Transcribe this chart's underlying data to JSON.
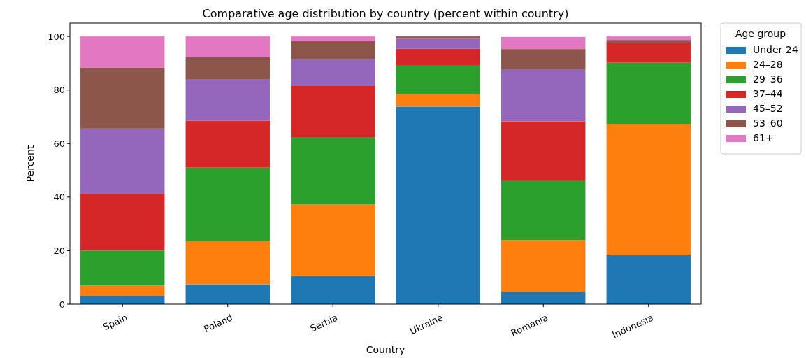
{
  "chart_data": {
    "type": "bar",
    "stacked": true,
    "title": "Comparative age distribution by country (percent within country)",
    "xlabel": "Country",
    "ylabel": "Percent",
    "legend_title": "Age group",
    "legend": "top right",
    "categories": [
      "Spain",
      "Poland",
      "Serbia",
      "Ukraine",
      "Romania",
      "Indonesia"
    ],
    "ylim": [
      0,
      105
    ],
    "yticks": [
      0,
      20,
      40,
      60,
      80,
      100
    ],
    "series": [
      {
        "name": "Under 24",
        "color": "#1f77b4",
        "values": [
          3,
          7.4,
          10.5,
          73.8,
          4.5,
          18.3
        ]
      },
      {
        "name": "24–28",
        "color": "#ff7f0e",
        "values": [
          4,
          16.3,
          26.7,
          4.7,
          19.5,
          48.9
        ]
      },
      {
        "name": "29–36",
        "color": "#2ca02c",
        "values": [
          13,
          27.3,
          25,
          10.6,
          22,
          23
        ]
      },
      {
        "name": "37–44",
        "color": "#d62728",
        "values": [
          21.2,
          17.5,
          19.5,
          6.3,
          22.3,
          7.4
        ]
      },
      {
        "name": "45–52",
        "color": "#9467bd",
        "values": [
          24.4,
          15.4,
          9.9,
          3.7,
          19.5,
          0
        ]
      },
      {
        "name": "53–60",
        "color": "#8c564b",
        "values": [
          22.7,
          8.4,
          6.7,
          0.9,
          7.5,
          1.1
        ]
      },
      {
        "name": "61+",
        "color": "#e377c2",
        "values": [
          11.7,
          7.7,
          1.7,
          0,
          4.5,
          1.3
        ]
      }
    ]
  }
}
